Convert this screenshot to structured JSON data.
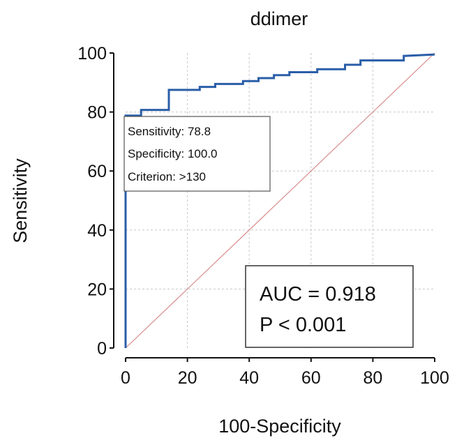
{
  "chart_data": {
    "type": "line",
    "title": "ddimer",
    "xlabel": "100-Specificity",
    "ylabel": "Sensitivity",
    "xlim": [
      0,
      100
    ],
    "ylim": [
      0,
      100
    ],
    "x_ticks": [
      "0",
      "20",
      "40",
      "60",
      "80",
      "100"
    ],
    "y_ticks": [
      "0",
      "20",
      "40",
      "60",
      "80",
      "100"
    ],
    "grid": true,
    "series": [
      {
        "color": "#2a5ea8",
        "x": [
          0,
          0,
          5,
          5,
          14,
          14,
          24,
          24,
          29,
          29,
          38,
          38,
          43,
          43,
          48,
          48,
          53,
          53,
          62,
          62,
          71,
          71,
          76,
          76,
          90,
          90,
          100
        ],
        "y": [
          0,
          78.8,
          78.8,
          80.7,
          80.7,
          87.5,
          87.5,
          88.5,
          88.5,
          89.5,
          89.5,
          90.5,
          90.5,
          91.5,
          91.5,
          92.5,
          92.5,
          93.5,
          93.5,
          94.5,
          94.5,
          96,
          96,
          97.5,
          97.5,
          99,
          99.5
        ]
      }
    ],
    "reference_line": {
      "x": [
        0,
        100
      ],
      "y": [
        0,
        100
      ],
      "color": "#d98c8c"
    },
    "annotations": {
      "criterion_box": [
        "Sensitivity: 78.8",
        "Specificity: 100.0",
        "Criterion: >130"
      ],
      "auc_box": [
        "AUC = 0.918",
        "P < 0.001"
      ]
    },
    "colors": {
      "roc": "#2a5ea8",
      "reference": "#d98c8c",
      "grid": "#c8c8c8"
    }
  }
}
